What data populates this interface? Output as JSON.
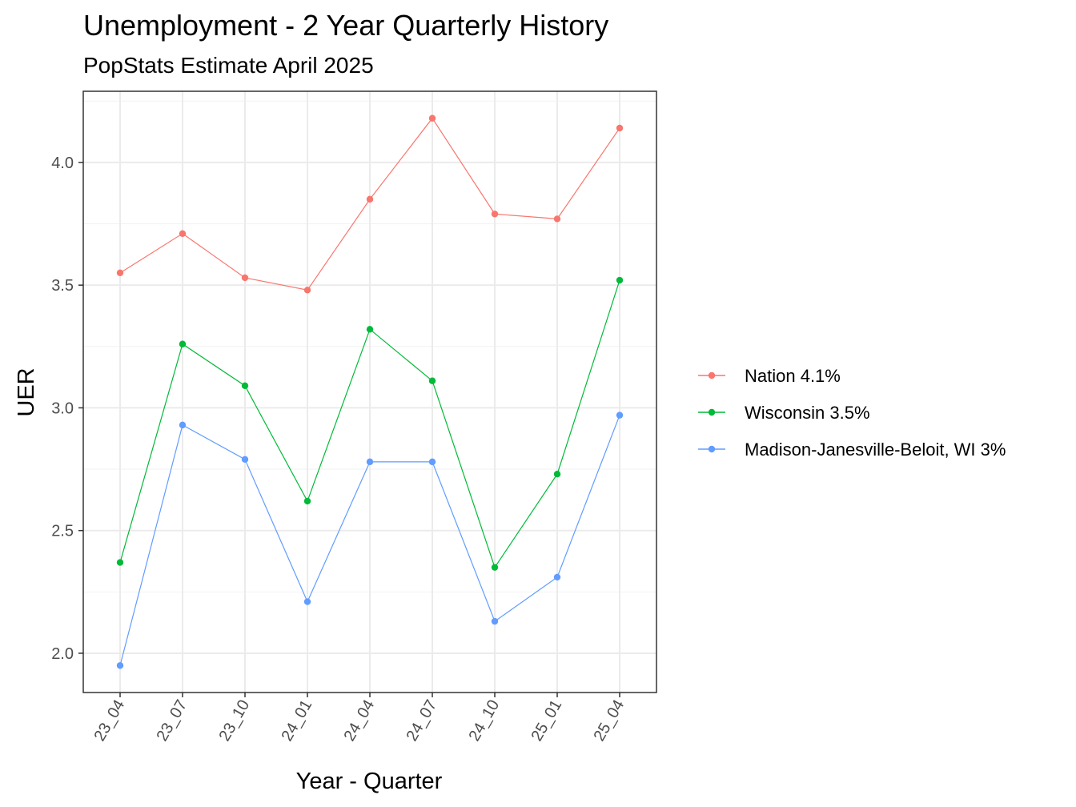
{
  "chart_data": {
    "type": "line",
    "title": "Unemployment - 2 Year Quarterly History",
    "subtitle": "PopStats Estimate April 2025",
    "xlabel": "Year - Quarter",
    "ylabel": "UER",
    "categories": [
      "23_04",
      "23_07",
      "23_10",
      "24_01",
      "24_04",
      "24_07",
      "24_10",
      "25_01",
      "25_04"
    ],
    "ylim": [
      1.84,
      4.29
    ],
    "yticks": [
      2.0,
      2.5,
      3.0,
      3.5,
      4.0
    ],
    "ytick_labels": [
      "2.0",
      "2.5",
      "3.0",
      "3.5",
      "4.0"
    ],
    "grid": true,
    "legend_position": "right",
    "series": [
      {
        "name": "Nation 4.1%",
        "color": "#F8766D",
        "values": [
          3.55,
          3.71,
          3.53,
          3.48,
          3.85,
          4.18,
          3.79,
          3.77,
          4.14
        ]
      },
      {
        "name": "Wisconsin 3.5%",
        "color": "#00BA38",
        "values": [
          2.37,
          3.26,
          3.09,
          2.62,
          3.32,
          3.11,
          2.35,
          2.73,
          3.52
        ]
      },
      {
        "name": "Madison-Janesville-Beloit, WI 3%",
        "color": "#619CFF",
        "values": [
          1.95,
          2.93,
          2.79,
          2.21,
          2.78,
          2.78,
          2.13,
          2.31,
          2.97
        ]
      }
    ]
  }
}
